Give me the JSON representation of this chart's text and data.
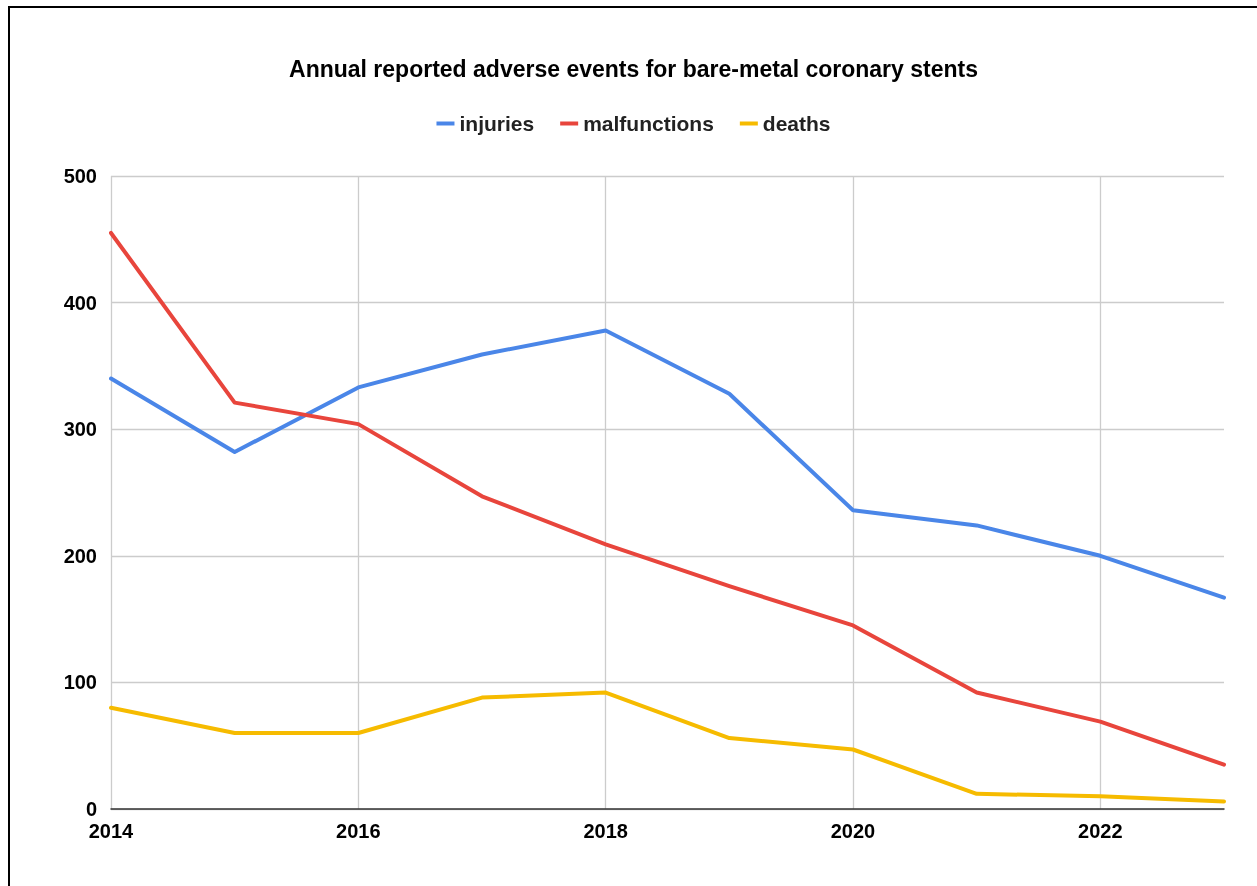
{
  "chart_data": {
    "type": "line",
    "title": "Annual reported adverse events for bare-metal coronary stents",
    "x": [
      2014,
      2015,
      2016,
      2017,
      2018,
      2019,
      2020,
      2021,
      2022,
      2023
    ],
    "series": [
      {
        "name": "injuries",
        "color": "#4a86e8",
        "values": [
          340,
          282,
          333,
          359,
          378,
          328,
          236,
          224,
          200,
          167
        ]
      },
      {
        "name": "malfunctions",
        "color": "#e8453c",
        "values": [
          455,
          321,
          304,
          247,
          209,
          176,
          145,
          92,
          69,
          35
        ]
      },
      {
        "name": "deaths",
        "color": "#f6bb00",
        "values": [
          80,
          60,
          60,
          88,
          92,
          56,
          47,
          12,
          10,
          6
        ]
      }
    ],
    "xlim": [
      2014,
      2023
    ],
    "xticks": [
      2014,
      2016,
      2018,
      2020,
      2022
    ],
    "ylim": [
      0,
      500
    ],
    "yticks": [
      0,
      100,
      200,
      300,
      400,
      500
    ],
    "grid": true,
    "legend": "top",
    "marker": "none",
    "line_style": "solid"
  }
}
